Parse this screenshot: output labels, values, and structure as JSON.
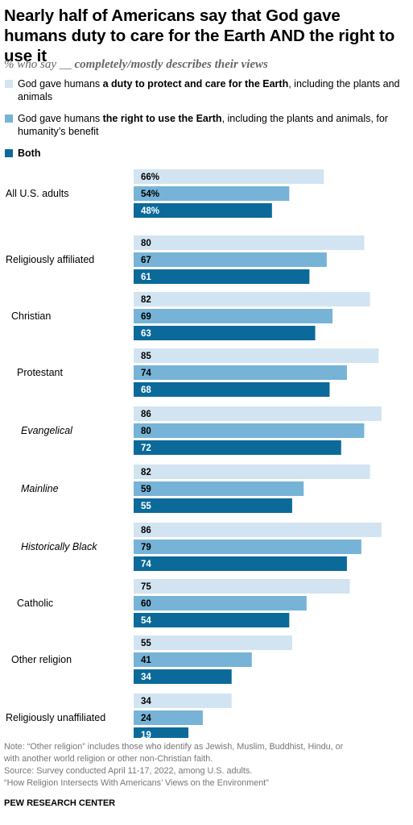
{
  "title": "Nearly half of Americans say that God gave humans duty to care for the Earth AND the right to use it",
  "subtitle": {
    "prefix": "% who say __ ",
    "emphasis": "completely/mostly describes their views"
  },
  "legend": [
    {
      "color": "#d2e4f1",
      "pre": "God gave humans ",
      "bold": "a duty to protect and care for the Earth",
      "post": ", including the plants and animals"
    },
    {
      "color": "#76b3d7",
      "pre": "God gave humans ",
      "bold": "the right to use the Earth",
      "post": ", including the plants and animals, for humanity’s benefit"
    },
    {
      "color": "#0b6a99",
      "pre": "",
      "bold": "Both",
      "post": ""
    }
  ],
  "colors": {
    "duty": "#d2e4f1",
    "right": "#76b3d7",
    "both": "#0b6a99",
    "label_dark": "#000000",
    "label_light": "#ffffff"
  },
  "chart_data": {
    "type": "bar",
    "orientation": "horizontal",
    "categories": [
      "All U.S. adults",
      "Religiously affiliated",
      "Christian",
      "Protestant",
      "Evangelical",
      "Mainline",
      "Historically Black",
      "Catholic",
      "Other religion",
      "Religiously unaffiliated"
    ],
    "category_style": [
      "normal",
      "normal",
      "normal",
      "normal",
      "italic",
      "italic",
      "italic",
      "normal",
      "normal",
      "normal"
    ],
    "category_indent_level": [
      0,
      0,
      1,
      2,
      3,
      3,
      3,
      2,
      1,
      0
    ],
    "series": [
      {
        "name": "God gave humans a duty to protect and care for the Earth, including the plants and animals",
        "values": [
          66,
          80,
          82,
          85,
          86,
          82,
          86,
          75,
          55,
          34
        ]
      },
      {
        "name": "God gave humans the right to use the Earth, including the plants and animals, for humanity’s benefit",
        "values": [
          54,
          67,
          69,
          74,
          80,
          59,
          79,
          60,
          41,
          24
        ]
      },
      {
        "name": "Both",
        "values": [
          48,
          61,
          63,
          68,
          72,
          55,
          74,
          54,
          34,
          19
        ]
      }
    ],
    "value_labels": [
      [
        "66%",
        "54%",
        "48%"
      ],
      [
        "80",
        "67",
        "61"
      ],
      [
        "82",
        "69",
        "63"
      ],
      [
        "85",
        "74",
        "68"
      ],
      [
        "86",
        "80",
        "72"
      ],
      [
        "82",
        "59",
        "55"
      ],
      [
        "86",
        "79",
        "74"
      ],
      [
        "75",
        "60",
        "54"
      ],
      [
        "55",
        "41",
        "34"
      ],
      [
        "34",
        "24",
        "19"
      ]
    ],
    "xlim": [
      0,
      100
    ],
    "grid": false,
    "legend_position": "top"
  },
  "notes": [
    "Note: “Other religion” includes those who identify as Jewish, Muslim, Buddhist, Hindu, or",
    "with another world religion or other non-Christian faith.",
    "Source: Survey conducted April 11-17, 2022, among U.S. adults.",
    "“How Religion Intersects With Americans’ Views on the Environment”"
  ],
  "source_org": "PEW RESEARCH CENTER"
}
